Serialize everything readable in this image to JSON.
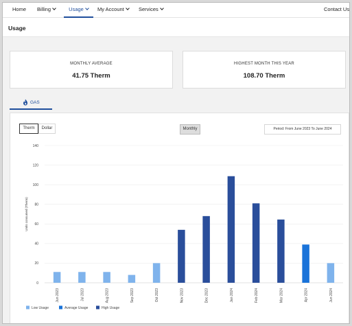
{
  "nav": {
    "home": "Home",
    "billing": "Billing",
    "usage": "Usage",
    "my_account": "My Account",
    "services": "Services",
    "contact": "Contact Us"
  },
  "page": {
    "title": "Usage"
  },
  "stats": {
    "monthly_average_label": "MONTHLY AVERAGE",
    "monthly_average_value": "41.75 Therm",
    "highest_month_label": "HIGHEST MONTH THIS YEAR",
    "highest_month_value": "108.70 Therm"
  },
  "tabs": {
    "gas": "GAS"
  },
  "controls": {
    "therm": "Therm",
    "dollar": "Dollar",
    "monthly": "Monthly",
    "period": "Period: From June 2023 To June 2024"
  },
  "colors": {
    "low": "#7fb3ec",
    "average": "#1a73d9",
    "high": "#2a4e9b"
  },
  "chart_data": {
    "type": "bar",
    "ylabel": "Units consumed (Therm)",
    "ylim": [
      0,
      140
    ],
    "yticks": [
      0,
      20,
      40,
      60,
      80,
      100,
      120,
      140
    ],
    "categories": [
      "Jun 2023",
      "Jul 2023",
      "Aug 2023",
      "Sep 2023",
      "Oct 2023",
      "Nov 2023",
      "Dec 2023",
      "Jan 2024",
      "Feb 2024",
      "Mar 2024",
      "Apr 2024",
      "Jun 2024"
    ],
    "values": [
      11,
      11,
      11,
      8,
      20,
      54,
      68,
      108.7,
      81,
      64.5,
      39,
      20
    ],
    "levels": [
      "low",
      "low",
      "low",
      "low",
      "low",
      "high",
      "high",
      "high",
      "high",
      "high",
      "average",
      "low"
    ],
    "grid": true,
    "legend_position": "bottom-left",
    "legend": [
      {
        "key": "low",
        "label": "Low Usage"
      },
      {
        "key": "average",
        "label": "Average Usage"
      },
      {
        "key": "high",
        "label": "High Usage"
      }
    ]
  }
}
